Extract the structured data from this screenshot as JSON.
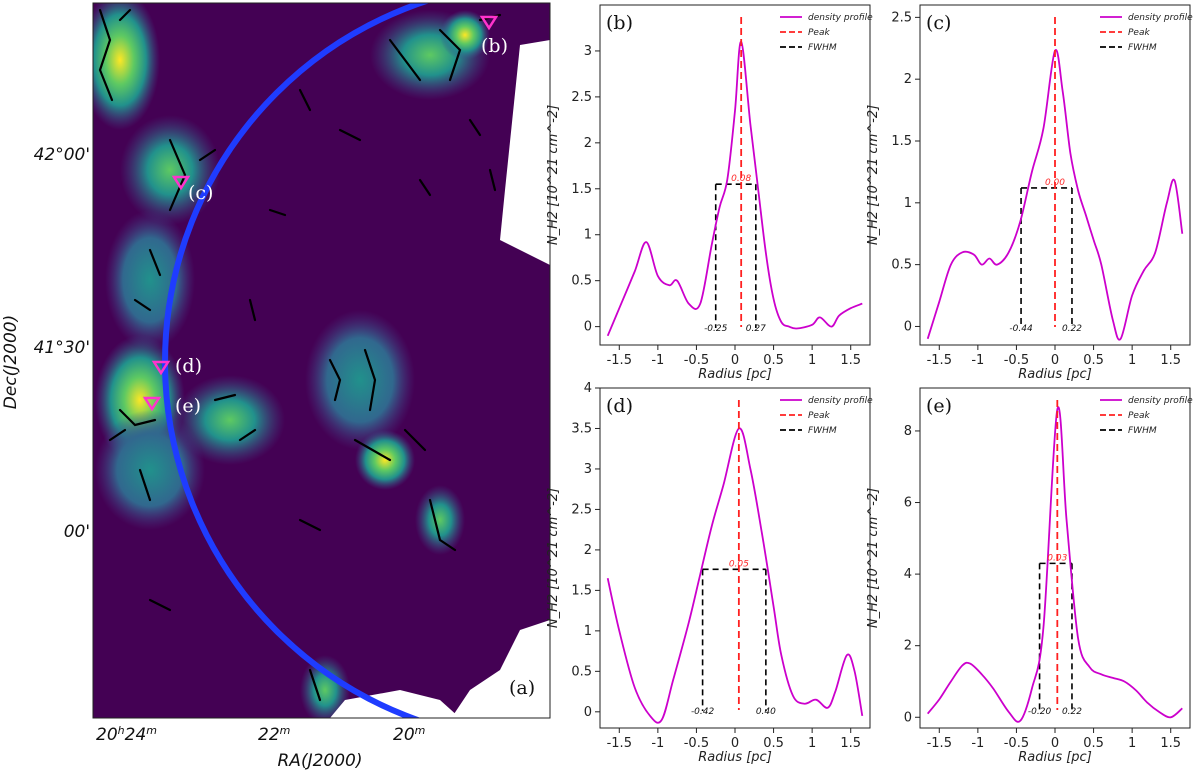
{
  "map": {
    "label": "(a)",
    "xlabel": "RA(J2000)",
    "ylabel": "Dec(J2000)",
    "ra_ticks": [
      {
        "h": "20",
        "m": "24",
        "sup_h": "h",
        "sup_m": "m"
      },
      {
        "m": "22",
        "sup_m": "m"
      },
      {
        "m": "20",
        "sup_m": "m"
      }
    ],
    "dec_ticks": [
      "42°00'",
      "41°30'",
      "00'"
    ],
    "markers": [
      {
        "label": "(b)"
      },
      {
        "label": "(c)"
      },
      {
        "label": "(d)"
      },
      {
        "label": "(e)"
      }
    ],
    "colors": {
      "background": "#440154",
      "circle": "#1f3cff",
      "marker": "#ff33cc",
      "filament": "#000000"
    }
  },
  "legend": {
    "profile": "density profile",
    "peak": "Peak",
    "fwhm": "FWHM"
  },
  "colors": {
    "profile": "#cc00cc",
    "peak": "#ff2020",
    "fwhm": "#000000"
  },
  "chart_data": [
    {
      "panel": "(b)",
      "type": "line",
      "xlabel": "Radius [pc]",
      "ylabel": "N_H2 [10^21 cm^-2]",
      "xlim": [
        -1.75,
        1.75
      ],
      "ylim": [
        -0.2,
        3.5
      ],
      "xticks": [
        -1.5,
        -1.0,
        -0.5,
        0.0,
        0.5,
        1.0,
        1.5
      ],
      "yticks": [
        0.0,
        0.5,
        1.0,
        1.5,
        2.0,
        2.5,
        3.0
      ],
      "x": [
        -1.65,
        -1.5,
        -1.3,
        -1.15,
        -1.0,
        -0.85,
        -0.75,
        -0.6,
        -0.45,
        -0.3,
        -0.2,
        -0.1,
        0.0,
        0.08,
        0.2,
        0.3,
        0.4,
        0.5,
        0.6,
        0.7,
        0.8,
        1.0,
        1.1,
        1.25,
        1.35,
        1.5,
        1.65
      ],
      "y": [
        -0.1,
        0.2,
        0.6,
        0.92,
        0.55,
        0.45,
        0.5,
        0.25,
        0.25,
        0.9,
        1.3,
        1.6,
        2.35,
        3.1,
        2.2,
        1.5,
        0.8,
        0.3,
        0.05,
        0.0,
        -0.02,
        0.02,
        0.1,
        0.0,
        0.12,
        0.2,
        0.25
      ],
      "peak": 0.08,
      "peak_label": "0.08",
      "fwhm_y": 1.55,
      "fwhm_left": -0.25,
      "fwhm_right": 0.27,
      "fwhm_left_label": "-0.25",
      "fwhm_right_label": "0.27"
    },
    {
      "panel": "(c)",
      "type": "line",
      "xlabel": "Radius [pc]",
      "ylabel": "N_H2 [10^21 cm^-2]",
      "xlim": [
        -1.75,
        1.75
      ],
      "ylim": [
        -0.15,
        2.6
      ],
      "xticks": [
        -1.5,
        -1.0,
        -0.5,
        0.0,
        0.5,
        1.0,
        1.5
      ],
      "yticks": [
        0.0,
        0.5,
        1.0,
        1.5,
        2.0,
        2.5
      ],
      "x": [
        -1.65,
        -1.5,
        -1.35,
        -1.2,
        -1.05,
        -0.95,
        -0.85,
        -0.75,
        -0.6,
        -0.45,
        -0.3,
        -0.15,
        0.0,
        0.1,
        0.2,
        0.3,
        0.4,
        0.5,
        0.6,
        0.75,
        0.85,
        1.0,
        1.15,
        1.3,
        1.45,
        1.55,
        1.65
      ],
      "y": [
        -0.1,
        0.2,
        0.5,
        0.6,
        0.58,
        0.5,
        0.55,
        0.5,
        0.6,
        0.85,
        1.25,
        1.6,
        2.23,
        1.9,
        1.4,
        1.1,
        0.9,
        0.7,
        0.5,
        0.05,
        -0.1,
        0.25,
        0.45,
        0.6,
        1.0,
        1.18,
        0.75
      ],
      "peak": 0.0,
      "peak_label": "0.00",
      "fwhm_y": 1.12,
      "fwhm_left": -0.44,
      "fwhm_right": 0.22,
      "fwhm_left_label": "-0.44",
      "fwhm_right_label": "0.22"
    },
    {
      "panel": "(d)",
      "type": "line",
      "xlabel": "Radius [pc]",
      "ylabel": "N_H2 [10^21 cm^-2]",
      "xlim": [
        -1.75,
        1.75
      ],
      "ylim": [
        -0.2,
        4.0
      ],
      "xticks": [
        -1.5,
        -1.0,
        -0.5,
        0.0,
        0.5,
        1.0,
        1.5
      ],
      "yticks": [
        0.0,
        0.5,
        1.0,
        1.5,
        2.0,
        2.5,
        3.0,
        3.5,
        4.0
      ],
      "x": [
        -1.65,
        -1.5,
        -1.3,
        -1.1,
        -0.95,
        -0.8,
        -0.6,
        -0.45,
        -0.3,
        -0.15,
        0.05,
        0.2,
        0.35,
        0.5,
        0.6,
        0.75,
        0.9,
        1.05,
        1.2,
        1.3,
        1.45,
        1.55,
        1.65
      ],
      "y": [
        1.65,
        1.0,
        0.3,
        -0.05,
        -0.1,
        0.4,
        1.1,
        1.7,
        2.3,
        2.8,
        3.5,
        3.0,
        2.2,
        1.3,
        0.7,
        0.2,
        0.1,
        0.15,
        0.05,
        0.25,
        0.7,
        0.5,
        -0.05
      ],
      "peak": 0.05,
      "peak_label": "0.05",
      "fwhm_y": 1.76,
      "fwhm_left": -0.42,
      "fwhm_right": 0.4,
      "fwhm_left_label": "-0.42",
      "fwhm_right_label": "0.40"
    },
    {
      "panel": "(e)",
      "type": "line",
      "xlabel": "Radius [pc]",
      "ylabel": "N_H2 [10^21 cm^-2]",
      "xlim": [
        -1.75,
        1.75
      ],
      "ylim": [
        -0.3,
        9.2
      ],
      "xticks": [
        -1.5,
        -1.0,
        -0.5,
        0.0,
        0.5,
        1.0,
        1.5
      ],
      "yticks": [
        0,
        2,
        4,
        6,
        8
      ],
      "x": [
        -1.65,
        -1.5,
        -1.35,
        -1.2,
        -1.1,
        -0.95,
        -0.8,
        -0.6,
        -0.45,
        -0.3,
        -0.15,
        0.03,
        0.15,
        0.3,
        0.45,
        0.6,
        0.75,
        0.9,
        1.05,
        1.2,
        1.35,
        1.5,
        1.65
      ],
      "y": [
        0.1,
        0.5,
        1.0,
        1.45,
        1.5,
        1.2,
        0.8,
        0.15,
        -0.1,
        0.8,
        2.5,
        8.6,
        5.5,
        2.2,
        1.4,
        1.2,
        1.1,
        1.0,
        0.75,
        0.4,
        0.15,
        0.0,
        0.25
      ],
      "peak": 0.03,
      "peak_label": "0.03",
      "fwhm_y": 4.3,
      "fwhm_left": -0.2,
      "fwhm_right": 0.22,
      "fwhm_left_label": "-0.20",
      "fwhm_right_label": "0.22"
    }
  ]
}
